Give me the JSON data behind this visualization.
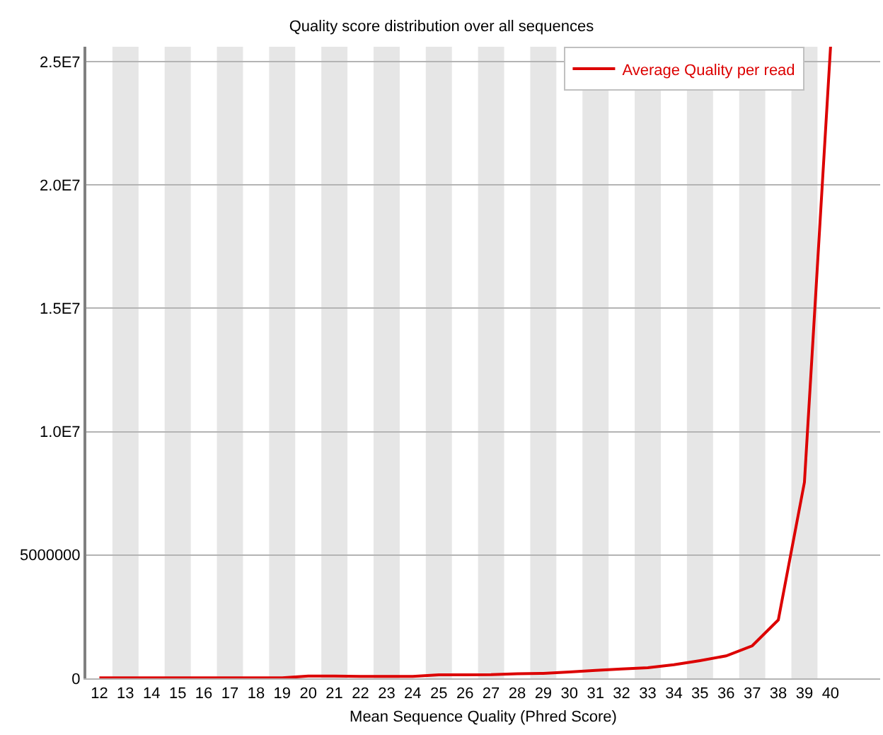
{
  "chart_data": {
    "type": "line",
    "title": "Quality score distribution over all sequences",
    "xlabel": "Mean Sequence Quality (Phred Score)",
    "x": [
      12,
      13,
      14,
      15,
      16,
      17,
      18,
      19,
      20,
      21,
      22,
      23,
      24,
      25,
      26,
      27,
      28,
      29,
      30,
      31,
      32,
      33,
      34,
      35,
      36,
      37,
      38,
      39,
      40
    ],
    "series": [
      {
        "name": "Average Quality per read",
        "color": "#dc0000",
        "values": [
          20000,
          20000,
          20000,
          20000,
          20000,
          20000,
          20000,
          20000,
          90000,
          90000,
          80000,
          80000,
          80000,
          140000,
          140000,
          150000,
          190000,
          200000,
          260000,
          320000,
          380000,
          430000,
          550000,
          720000,
          910000,
          1320000,
          2370000,
          7950000,
          25600000
        ]
      }
    ],
    "xlim": [
      11.5,
      41.9
    ],
    "xticks": [
      12,
      13,
      14,
      15,
      16,
      17,
      18,
      19,
      20,
      21,
      22,
      23,
      24,
      25,
      26,
      27,
      28,
      29,
      30,
      31,
      32,
      33,
      34,
      35,
      36,
      37,
      38,
      39,
      40
    ],
    "ylim": [
      0,
      25600000
    ],
    "yticks": [
      0,
      5000000,
      {
        "value": 10000000,
        "label": "1.0E7"
      },
      {
        "value": 15000000,
        "label": "1.5E7"
      },
      {
        "value": 20000000,
        "label": "2.0E7"
      },
      {
        "value": 25000000,
        "label": "2.5E7"
      }
    ],
    "bands": [
      {
        "axis": "x",
        "from": 12.5,
        "to": 13.5,
        "color": "#e6e6e6"
      },
      {
        "axis": "x",
        "from": 14.5,
        "to": 15.5,
        "color": "#e6e6e6"
      },
      {
        "axis": "x",
        "from": 16.5,
        "to": 17.5,
        "color": "#e6e6e6"
      },
      {
        "axis": "x",
        "from": 18.5,
        "to": 19.5,
        "color": "#e6e6e6"
      },
      {
        "axis": "x",
        "from": 20.5,
        "to": 21.5,
        "color": "#e6e6e6"
      },
      {
        "axis": "x",
        "from": 22.5,
        "to": 23.5,
        "color": "#e6e6e6"
      },
      {
        "axis": "x",
        "from": 24.5,
        "to": 25.5,
        "color": "#e6e6e6"
      },
      {
        "axis": "x",
        "from": 26.5,
        "to": 27.5,
        "color": "#e6e6e6"
      },
      {
        "axis": "x",
        "from": 28.5,
        "to": 29.5,
        "color": "#e6e6e6"
      },
      {
        "axis": "x",
        "from": 30.5,
        "to": 31.5,
        "color": "#e6e6e6"
      },
      {
        "axis": "x",
        "from": 32.5,
        "to": 33.5,
        "color": "#e6e6e6"
      },
      {
        "axis": "x",
        "from": 34.5,
        "to": 35.5,
        "color": "#e6e6e6"
      },
      {
        "axis": "x",
        "from": 36.5,
        "to": 37.5,
        "color": "#e6e6e6"
      },
      {
        "axis": "x",
        "from": 38.5,
        "to": 39.5,
        "color": "#e6e6e6"
      }
    ],
    "grid": "y",
    "legend": "top right",
    "marker": "none",
    "line_style": "solid"
  }
}
